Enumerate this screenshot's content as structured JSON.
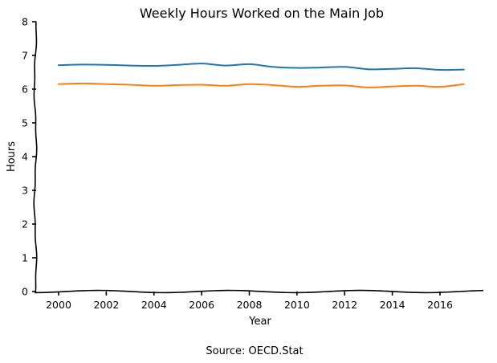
{
  "chart_data": {
    "type": "line",
    "title": "Weekly Hours Worked on the Main Job",
    "xlabel": "Year",
    "ylabel": "Hours",
    "source": "Source: OECD.Stat",
    "xlim": [
      1999,
      2018
    ],
    "ylim": [
      0,
      8
    ],
    "x_ticks": [
      2000,
      2002,
      2004,
      2006,
      2008,
      2010,
      2012,
      2014,
      2016
    ],
    "y_ticks": [
      0,
      1,
      2,
      3,
      4,
      5,
      6,
      7,
      8
    ],
    "grid": false,
    "x": [
      2000,
      2001,
      2002,
      2003,
      2004,
      2005,
      2006,
      2007,
      2008,
      2009,
      2010,
      2011,
      2012,
      2013,
      2014,
      2015,
      2016,
      2017
    ],
    "series": [
      {
        "color": "#1f77b4",
        "values": [
          6.71,
          6.73,
          6.72,
          6.7,
          6.69,
          6.72,
          6.76,
          6.7,
          6.74,
          6.66,
          6.63,
          6.64,
          6.66,
          6.59,
          6.6,
          6.62,
          6.57,
          6.58
        ]
      },
      {
        "color": "#ff7f0e",
        "values": [
          6.15,
          6.17,
          6.15,
          6.13,
          6.1,
          6.12,
          6.13,
          6.1,
          6.15,
          6.12,
          6.07,
          6.1,
          6.11,
          6.05,
          6.08,
          6.1,
          6.07,
          6.15
        ]
      }
    ]
  }
}
